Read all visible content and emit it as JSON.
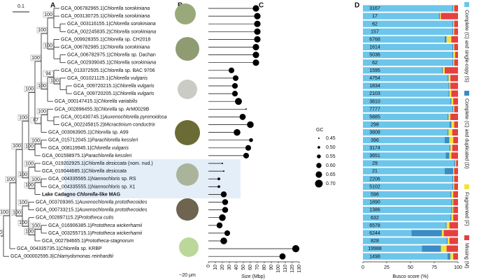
{
  "scale_bar": "0.1",
  "panel_labels": [
    "A",
    "B",
    "C",
    "D"
  ],
  "image_caption": "~20 µm",
  "tree": {
    "support": 100,
    "children": [
      {
        "support": 100,
        "children": [
          {
            "support": 100,
            "children": [
              {
                "support": 100,
                "children": [
                  {
                    "support": 100,
                    "children": [
                      {
                        "support": 100,
                        "children": [
                          {
                            "support": 100,
                            "children": [
                              {
                                "support": 100,
                                "children": [
                                  {
                                    "support": 100,
                                    "children": [
                                      "GCA_006782965.1|Chlorella sorokiniana",
                                      "GCA_003130725.1|Chlorella sorokiniana",
                                      {
                                        "children": [
                                          "GCA_003116155.1|Chlorella sorokiniana",
                                          "GCA_002245835.2|Chlorella sorokiniana"
                                        ]
                                      }
                                    ]
                                  },
                                  {
                                    "support": 100,
                                    "children": [
                                      "GCA_009928355.1|Chlorella sp. CH2018",
                                      "GCA_006782985.1|Chlorella sorokiniana",
                                      {
                                        "children": [
                                          "GCA_006782975.1|Chlorella sp. Dachan",
                                          "GCA_002939045.1|Chlorella sorokiniana"
                                        ]
                                      }
                                    ]
                                  }
                                ]
                              },
                              {
                                "support": 100,
                                "children": [
                                  {
                                    "support": 94,
                                    "children": [
                                      "GCA_013372505.1|Chlorella sp. BAC 9706",
                                      {
                                        "support": 100,
                                        "children": [
                                          "GCA_001021125.1|Chlorella vulgaris",
                                          {
                                            "children": [
                                              "GCA_009720215.1|Chlorella vulgaris",
                                              "GCA_009720205.1|Chlorella vulgaris"
                                            ]
                                          }
                                        ]
                                      }
                                    ]
                                  },
                                  "GCA_000147415.1|Chlorella variabilis"
                                ]
                              }
                            ]
                          },
                          {
                            "support": 87,
                            "children": [
                              {
                                "support": 100,
                                "children": [
                                  "GCA_002896455.3|Chlorella sp. ArM0029B",
                                  {
                                    "children": [
                                      "GCA_001430745.1|Auxenochlorella pyrenoidosa",
                                      "GCA_002245815.2|Micractinium conductrix"
                                    ]
                                  }
                                ]
                              },
                              "GCA_003063905.1|Chlorella sp. A99"
                            ]
                          }
                        ]
                      },
                      {
                        "support": 100,
                        "children": [
                          {
                            "support": 100,
                            "children": [
                              "GCA_015712045.1|Parachlorella kessleri",
                              "GCA_008119945.1|Chlorella vulgaris"
                            ]
                          },
                          "GCA_001598975.1|Parachlorella kessleri"
                        ]
                      }
                    ]
                  },
                  {
                    "support": 100,
                    "children": [
                      {
                        "support": 100,
                        "children": [
                          "GCA_019202925.1|Chlorella desiccata (nom. nud.)",
                          "GCA_019044685.1|Chlorella desiccata"
                        ]
                      },
                      {
                        "support": 100,
                        "children": [
                          {
                            "support": 100,
                            "children": [
                              "GCA_004335565.1|Nannochloris sp. RS",
                              "GCA_004335555.1|Nannochloris sp. X1"
                            ]
                          },
                          "Lake Cadagno Chlorella-like MAG"
                        ]
                      }
                    ]
                  }
                ]
              },
              {
                "support": 100,
                "children": [
                  {
                    "support": 100,
                    "children": [
                      "GCA_003709365.1|Auxenochlorella protothecoides",
                      "GCA_000733215.1|Auxenochlorella protothecoides"
                    ]
                  },
                  {
                    "support": 100,
                    "children": [
                      "GCA_002897115.2|Prototheca cutis",
                      {
                        "support": 100,
                        "children": [
                          {
                            "support": 100,
                            "children": [
                              "GCA_016906385.1|Prototheca wickerhamii",
                              "GCA_003255715.1|Prototheca wickerhamii"
                            ]
                          },
                          "GCA_002794665.1|Prototheca-stagnorum"
                        ]
                      }
                    ]
                  }
                ]
              }
            ]
          },
          "GCA_004335735.1|Chlorella sp. KRBP"
        ]
      },
      "GCA_000002595.3|Chlamydomonas reinhardtii"
    ]
  },
  "chart_data": [
    {
      "type": "lollipop",
      "xlabel": "Size (Mbp)",
      "color": "#000000",
      "values": [
        68,
        70,
        70,
        70,
        70,
        68,
        68,
        68,
        33,
        39,
        38,
        38,
        43,
        54,
        49,
        60,
        41,
        61,
        57,
        54,
        20,
        22,
        15,
        15,
        22,
        24,
        24,
        20,
        16,
        27,
        22,
        125,
        106
      ],
      "gc": [
        0.65,
        0.65,
        0.65,
        0.65,
        0.65,
        0.65,
        0.65,
        0.65,
        0.62,
        0.62,
        0.62,
        0.62,
        0.67,
        0.45,
        0.64,
        0.66,
        0.66,
        0.55,
        0.62,
        0.62,
        0.45,
        0.45,
        0.5,
        0.5,
        0.63,
        0.63,
        0.63,
        0.66,
        0.63,
        0.62,
        0.66,
        0.68,
        0.64
      ],
      "xlim": [
        0,
        130
      ],
      "xticks": [
        0,
        10,
        20,
        30,
        40,
        50,
        60,
        70,
        80,
        90,
        100,
        110,
        120,
        130
      ],
      "size_legend": {
        "title": "GC",
        "values": [
          0.45,
          {
            "value": 0.5,
            "label": "0.50"
          },
          0.55,
          {
            "value": 0.6,
            "label": "0.60"
          },
          0.65,
          {
            "value": 0.7,
            "label": "0.70"
          }
        ]
      }
    },
    {
      "type": "stacked-barh",
      "xlabel": "Busco score (%)",
      "xlim": [
        0,
        100
      ],
      "xticks": [
        0,
        25,
        50,
        75,
        100
      ],
      "bar_labels": [
        3167,
        17,
        62,
        157,
        6768,
        1614,
        5036,
        62,
        1595,
        4754,
        1834,
        2103,
        3810,
        7777,
        5885,
        298,
        3808,
        396,
        3174,
        3651,
        29,
        21,
        2206,
        5102,
        596,
        1890,
        1386,
        632,
        6578,
        6244,
        828,
        19988,
        1498
      ],
      "series": [
        {
          "name": "Complete (C) and single-copy (S)",
          "color": "#6cc5ea",
          "values": [
            94,
            80,
            94,
            94,
            86,
            94,
            94,
            94,
            83,
            89,
            90,
            90,
            92,
            94,
            89,
            91,
            89,
            86,
            91,
            87,
            96,
            86,
            94,
            94,
            92,
            93,
            93,
            92,
            87,
            51,
            88,
            62,
            89
          ]
        },
        {
          "name": "Complete (C) and duplicated (D)",
          "color": "#3a8cc4",
          "values": [
            1,
            1,
            1,
            1,
            2,
            1,
            1,
            1,
            1,
            1,
            1,
            1,
            1,
            1,
            1,
            2,
            1,
            5,
            1,
            4,
            1,
            9,
            1,
            1,
            1,
            1,
            1,
            1,
            1,
            32,
            1,
            20,
            3
          ]
        },
        {
          "name": "Fragmented (F)",
          "color": "#f4e23c",
          "values": [
            1,
            1,
            1,
            1,
            5,
            1,
            2,
            1,
            2,
            2,
            1,
            2,
            2,
            1,
            2,
            3,
            4,
            4,
            2,
            2,
            1,
            1,
            1,
            1,
            2,
            1,
            1,
            2,
            3,
            2,
            2,
            6,
            3
          ]
        },
        {
          "name": "Missing (M)",
          "color": "#e5403f",
          "values": [
            4,
            18,
            4,
            4,
            7,
            4,
            3,
            4,
            14,
            8,
            8,
            7,
            5,
            4,
            8,
            4,
            6,
            5,
            6,
            7,
            2,
            4,
            4,
            4,
            5,
            5,
            5,
            5,
            9,
            15,
            9,
            12,
            5
          ]
        }
      ]
    }
  ]
}
